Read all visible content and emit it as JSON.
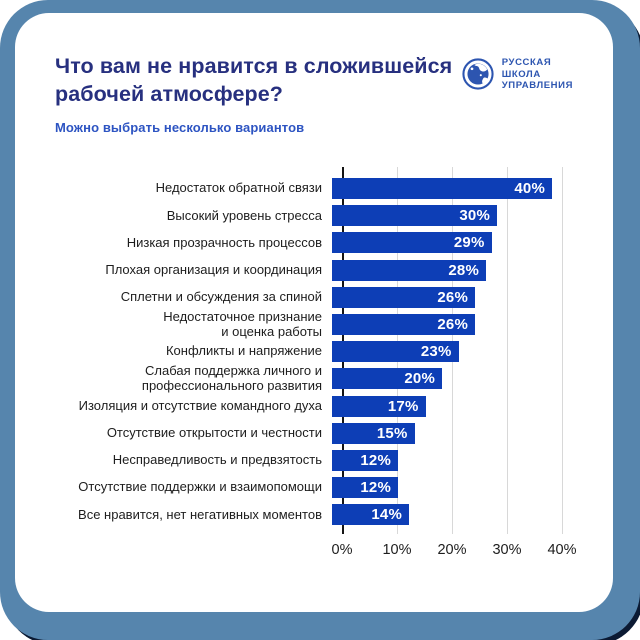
{
  "header": {
    "title": "Что вам не нравится в сложившейся рабочей атмосфере?",
    "subtitle": "Можно выбрать несколько вариантов",
    "logo": {
      "icon": "globe-logo-icon",
      "lines": [
        "РУССКАЯ",
        "ШКОЛА",
        "УПРАВЛЕНИЯ"
      ]
    }
  },
  "colors": {
    "bar": "#0d3eb6",
    "title": "#27307f",
    "subtitle": "#2d54c2",
    "logo": "#2d55b0",
    "frame": "#5685ad",
    "frame_shadow": "#0b1a33",
    "grid": "#d8d8d8",
    "axis": "#141414",
    "label": "#1d1d1d",
    "value_text": "#ffffff"
  },
  "chart_data": {
    "type": "bar",
    "orientation": "horizontal",
    "title": "Что вам не нравится в сложившейся рабочей атмосфере?",
    "categories": [
      "Недостаток обратной связи",
      "Высокий уровень стресса",
      "Низкая прозрачность процессов",
      "Плохая организация и координация",
      "Сплетни и обсуждения за спиной",
      "Недостаточное признание\nи оценка работы",
      "Конфликты и напряжение",
      "Слабая поддержка личного и\nпрофессионального развития",
      "Изоляция и отсутствие командного духа",
      "Отсутствие открытости и честности",
      "Несправедливость и предвзятость",
      "Отсутствие поддержки и взаимопомощи",
      "Все нравится, нет негативных моментов"
    ],
    "values": [
      40,
      30,
      29,
      28,
      26,
      26,
      23,
      20,
      17,
      15,
      12,
      12,
      14
    ],
    "value_labels": [
      "40%",
      "30%",
      "29%",
      "28%",
      "26%",
      "26%",
      "23%",
      "20%",
      "17%",
      "15%",
      "12%",
      "12%",
      "14%"
    ],
    "x_ticks": [
      "0%",
      "10%",
      "20%",
      "30%",
      "40%"
    ],
    "xlim": [
      0,
      43
    ],
    "grid": true,
    "legend": false
  }
}
